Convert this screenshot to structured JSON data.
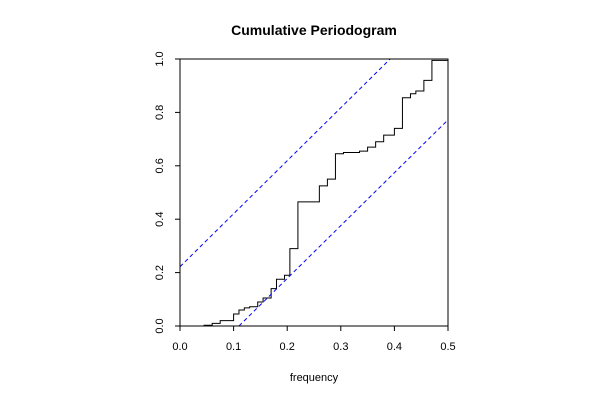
{
  "chart_data": {
    "type": "line",
    "title": "Cumulative Periodogram",
    "xlabel": "frequency",
    "ylabel": "",
    "xlim": [
      0.0,
      0.5
    ],
    "ylim": [
      0.0,
      1.0
    ],
    "xticks": [
      "0.0",
      "0.1",
      "0.2",
      "0.3",
      "0.4",
      "0.5"
    ],
    "yticks": [
      "0.0",
      "0.2",
      "0.4",
      "0.6",
      "0.8",
      "1.0"
    ],
    "grid": false,
    "series": [
      {
        "style": "step",
        "color": "#000000",
        "x": [
          0.0,
          0.045,
          0.06,
          0.075,
          0.1,
          0.11,
          0.12,
          0.13,
          0.145,
          0.155,
          0.17,
          0.18,
          0.195,
          0.205,
          0.22,
          0.235,
          0.26,
          0.275,
          0.29,
          0.305,
          0.335,
          0.35,
          0.365,
          0.38,
          0.4,
          0.415,
          0.43,
          0.44,
          0.455,
          0.47,
          0.475,
          0.49
        ],
        "y": [
          0.0,
          0.003,
          0.01,
          0.02,
          0.045,
          0.06,
          0.068,
          0.072,
          0.09,
          0.105,
          0.14,
          0.175,
          0.19,
          0.29,
          0.465,
          0.465,
          0.525,
          0.55,
          0.645,
          0.65,
          0.655,
          0.67,
          0.69,
          0.715,
          0.74,
          0.855,
          0.87,
          0.88,
          0.92,
          0.995,
          0.995,
          0.995
        ]
      },
      {
        "style": "dashed",
        "color": "#0000ff",
        "x": [
          0.0,
          0.392
        ],
        "y": [
          0.222,
          1.0
        ]
      },
      {
        "style": "dashed",
        "color": "#0000ff",
        "x": [
          0.11,
          0.5
        ],
        "y": [
          0.0,
          0.772
        ]
      }
    ]
  }
}
